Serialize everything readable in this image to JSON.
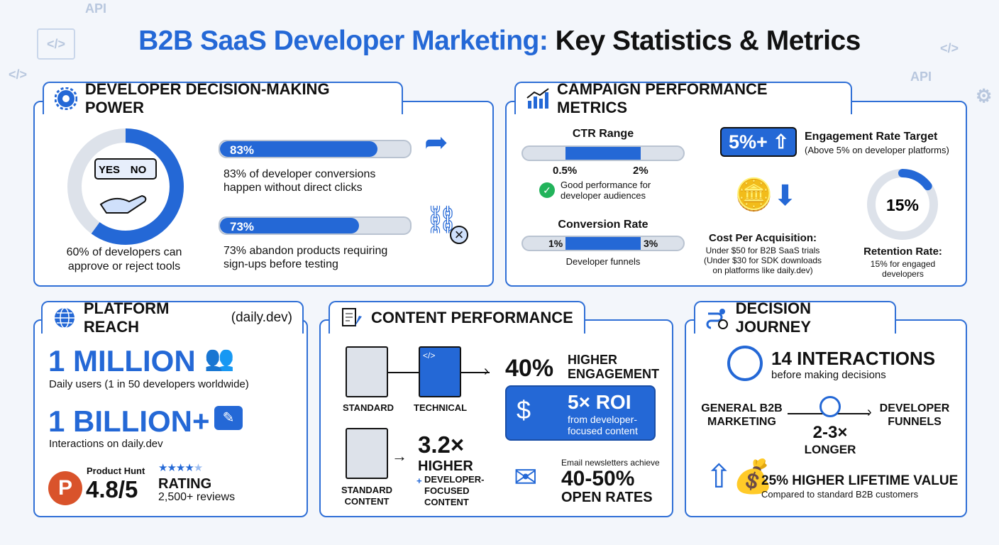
{
  "title": {
    "part1": "B2B SaaS Developer Marketing:",
    "part2": "Key Statistics & Metrics"
  },
  "decision_power": {
    "heading": "DEVELOPER DECISION-MAKING POWER",
    "donut_percent": 60,
    "yes": "YES",
    "no": "NO",
    "donut_caption": "60% of developers can approve or reject tools",
    "bars": [
      {
        "label": "83%",
        "value": 83,
        "caption": "83% of developer conversions happen without direct clicks"
      },
      {
        "label": "73%",
        "value": 73,
        "caption": "73% abandon products requiring sign-ups before testing"
      }
    ]
  },
  "campaign": {
    "heading": "CAMPAIGN PERFORMANCE METRICS",
    "ctr_title": "CTR Range",
    "ctr_low": "0.5%",
    "ctr_high": "2%",
    "ctr_note": "Good performance for developer audiences",
    "conv_title": "Conversion Rate",
    "conv_low": "1%",
    "conv_high": "3%",
    "conv_note": "Developer funnels",
    "engagement_badge": "5%+",
    "engagement_title": "Engagement Rate Target",
    "engagement_note": "(Above 5% on developer platforms)",
    "cpa_title": "Cost Per Acquisition:",
    "cpa_line1": "Under $50 for B2B SaaS trials",
    "cpa_line2": "(Under $30 for SDK downloads on platforms like daily.dev)",
    "retention_value": "15%",
    "retention_percent": 15,
    "retention_title": "Retention Rate:",
    "retention_note": "15% for engaged developers"
  },
  "reach": {
    "heading": "PLATFORM REACH",
    "heading_suffix": "(daily.dev)",
    "users": "1 MILLION",
    "users_note": "Daily users (1 in 50 developers worldwide)",
    "interactions": "1 BILLION+",
    "interactions_note": "Interactions on daily.dev",
    "ph_label": "Product Hunt",
    "ph_logo": "P",
    "rating": "4.8/5",
    "rating_label": "RATING",
    "reviews": "2,500+ reviews",
    "stars": 4.8
  },
  "content": {
    "heading": "CONTENT PERFORMANCE",
    "standard": "STANDARD",
    "technical": "TECHNICAL",
    "engagement_value": "40%",
    "engagement_l1": "HIGHER",
    "engagement_l2": "ENGAGEMENT",
    "roi": "5× ROI",
    "roi_note": "from developer-focused content",
    "standard_content": "STANDARD CONTENT",
    "multiplier": "3.2×",
    "higher": "HIGHER",
    "plus": "+",
    "dev_focused": "DEVELOPER-FOCUSED CONTENT",
    "email_note": "Email newsletters achieve",
    "open_rates_value": "40-50%",
    "open_rates_label": "OPEN RATES"
  },
  "journey": {
    "heading": "DECISION JOURNEY",
    "interactions": "14 INTERACTIONS",
    "interactions_note": "before making decisions",
    "general": "GENERAL B2B MARKETING",
    "longer_value": "2-3×",
    "longer_label": "LONGER",
    "developer": "DEVELOPER FUNNELS",
    "ltv": "25% HIGHER LIFETIME VALUE",
    "ltv_note": "Compared to standard B2B customers"
  },
  "colors": {
    "accent": "#2468d6",
    "border": "#2f6fd6",
    "track": "#dbe1ea",
    "success": "#22b35b",
    "producthunt": "#d9532b"
  }
}
